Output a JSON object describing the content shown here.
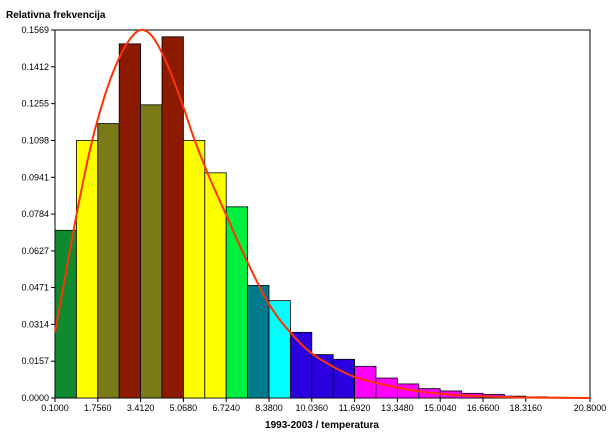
{
  "chart_data": {
    "type": "bar",
    "ylabel": "Relativna frekvencija",
    "xlabel": "1993-2003 / temperatura",
    "x_ticks": [
      "0.1000",
      "1.7560",
      "3.4120",
      "5.0680",
      "6.7240",
      "8.3800",
      "10.0360",
      "11.6920",
      "13.3480",
      "15.0040",
      "16.6600",
      "18.3160",
      "20.8000"
    ],
    "x_tick_values": [
      0.1,
      1.756,
      3.412,
      5.068,
      6.724,
      8.38,
      10.036,
      11.692,
      13.348,
      15.004,
      16.66,
      18.316,
      20.8
    ],
    "y_ticks": [
      "0.0000",
      "0.0157",
      "0.0314",
      "0.0471",
      "0.0627",
      "0.0784",
      "0.0941",
      "0.1098",
      "0.1255",
      "0.1412",
      "0.1569"
    ],
    "xlim": [
      0.1,
      20.8
    ],
    "ylim": [
      0,
      0.1569
    ],
    "grid": false,
    "bars": [
      {
        "x0": 0.1,
        "x1": 0.928,
        "value": 0.0715,
        "color": "#108a30"
      },
      {
        "x0": 0.928,
        "x1": 1.756,
        "value": 0.1098,
        "color": "#ffff00"
      },
      {
        "x0": 1.756,
        "x1": 2.584,
        "value": 0.117,
        "color": "#7b7a18"
      },
      {
        "x0": 2.584,
        "x1": 3.412,
        "value": 0.151,
        "color": "#8b1a00"
      },
      {
        "x0": 3.412,
        "x1": 4.24,
        "value": 0.125,
        "color": "#7b7a18"
      },
      {
        "x0": 4.24,
        "x1": 5.068,
        "value": 0.154,
        "color": "#8b1a00"
      },
      {
        "x0": 5.068,
        "x1": 5.896,
        "value": 0.1098,
        "color": "#ffff00"
      },
      {
        "x0": 5.896,
        "x1": 6.724,
        "value": 0.096,
        "color": "#ffff00"
      },
      {
        "x0": 6.724,
        "x1": 7.552,
        "value": 0.0815,
        "color": "#00f040"
      },
      {
        "x0": 7.552,
        "x1": 8.38,
        "value": 0.048,
        "color": "#007a8a"
      },
      {
        "x0": 8.38,
        "x1": 9.208,
        "value": 0.0415,
        "color": "#00ffff"
      },
      {
        "x0": 9.208,
        "x1": 10.036,
        "value": 0.028,
        "color": "#2a00e0"
      },
      {
        "x0": 10.036,
        "x1": 10.864,
        "value": 0.0185,
        "color": "#2a00e0"
      },
      {
        "x0": 10.864,
        "x1": 11.692,
        "value": 0.0165,
        "color": "#2a00e0"
      },
      {
        "x0": 11.692,
        "x1": 12.52,
        "value": 0.0135,
        "color": "#ff00ff"
      },
      {
        "x0": 12.52,
        "x1": 13.348,
        "value": 0.0085,
        "color": "#ff00ff"
      },
      {
        "x0": 13.348,
        "x1": 14.176,
        "value": 0.006,
        "color": "#ff00ff"
      },
      {
        "x0": 14.176,
        "x1": 15.004,
        "value": 0.004,
        "color": "#ff00ff"
      },
      {
        "x0": 15.004,
        "x1": 15.832,
        "value": 0.003,
        "color": "#ff00ff"
      },
      {
        "x0": 15.832,
        "x1": 16.66,
        "value": 0.002,
        "color": "#ff00ff"
      },
      {
        "x0": 16.66,
        "x1": 17.488,
        "value": 0.0015,
        "color": "#ff00ff"
      },
      {
        "x0": 17.488,
        "x1": 18.316,
        "value": 0.0008,
        "color": "#ff00ff"
      },
      {
        "x0": 18.316,
        "x1": 19.144,
        "value": 0.0005,
        "color": "#ff00ff"
      },
      {
        "x0": 19.144,
        "x1": 19.972,
        "value": 0.0003,
        "color": "#ff00ff"
      },
      {
        "x0": 19.972,
        "x1": 20.8,
        "value": 0.0002,
        "color": "#ff00ff"
      }
    ],
    "curve": {
      "color": "#ff3300",
      "points": [
        [
          0.1,
          0.028
        ],
        [
          0.5,
          0.052
        ],
        [
          1.0,
          0.082
        ],
        [
          1.5,
          0.108
        ],
        [
          2.0,
          0.128
        ],
        [
          2.5,
          0.143
        ],
        [
          3.0,
          0.153
        ],
        [
          3.412,
          0.1569
        ],
        [
          3.8,
          0.155
        ],
        [
          4.2,
          0.148
        ],
        [
          4.6,
          0.138
        ],
        [
          5.068,
          0.124
        ],
        [
          5.5,
          0.11
        ],
        [
          6.0,
          0.096
        ],
        [
          6.724,
          0.078
        ],
        [
          7.5,
          0.059
        ],
        [
          8.38,
          0.04
        ],
        [
          9.2,
          0.028
        ],
        [
          10.036,
          0.019
        ],
        [
          11.0,
          0.0125
        ],
        [
          11.692,
          0.009
        ],
        [
          12.5,
          0.0065
        ],
        [
          13.348,
          0.0045
        ],
        [
          14.2,
          0.0028
        ],
        [
          15.004,
          0.0018
        ],
        [
          16.0,
          0.001
        ],
        [
          16.66,
          0.0007
        ],
        [
          17.5,
          0.0004
        ],
        [
          18.316,
          0.0002
        ],
        [
          19.5,
          0.0001
        ],
        [
          20.8,
          0.0
        ]
      ]
    }
  }
}
